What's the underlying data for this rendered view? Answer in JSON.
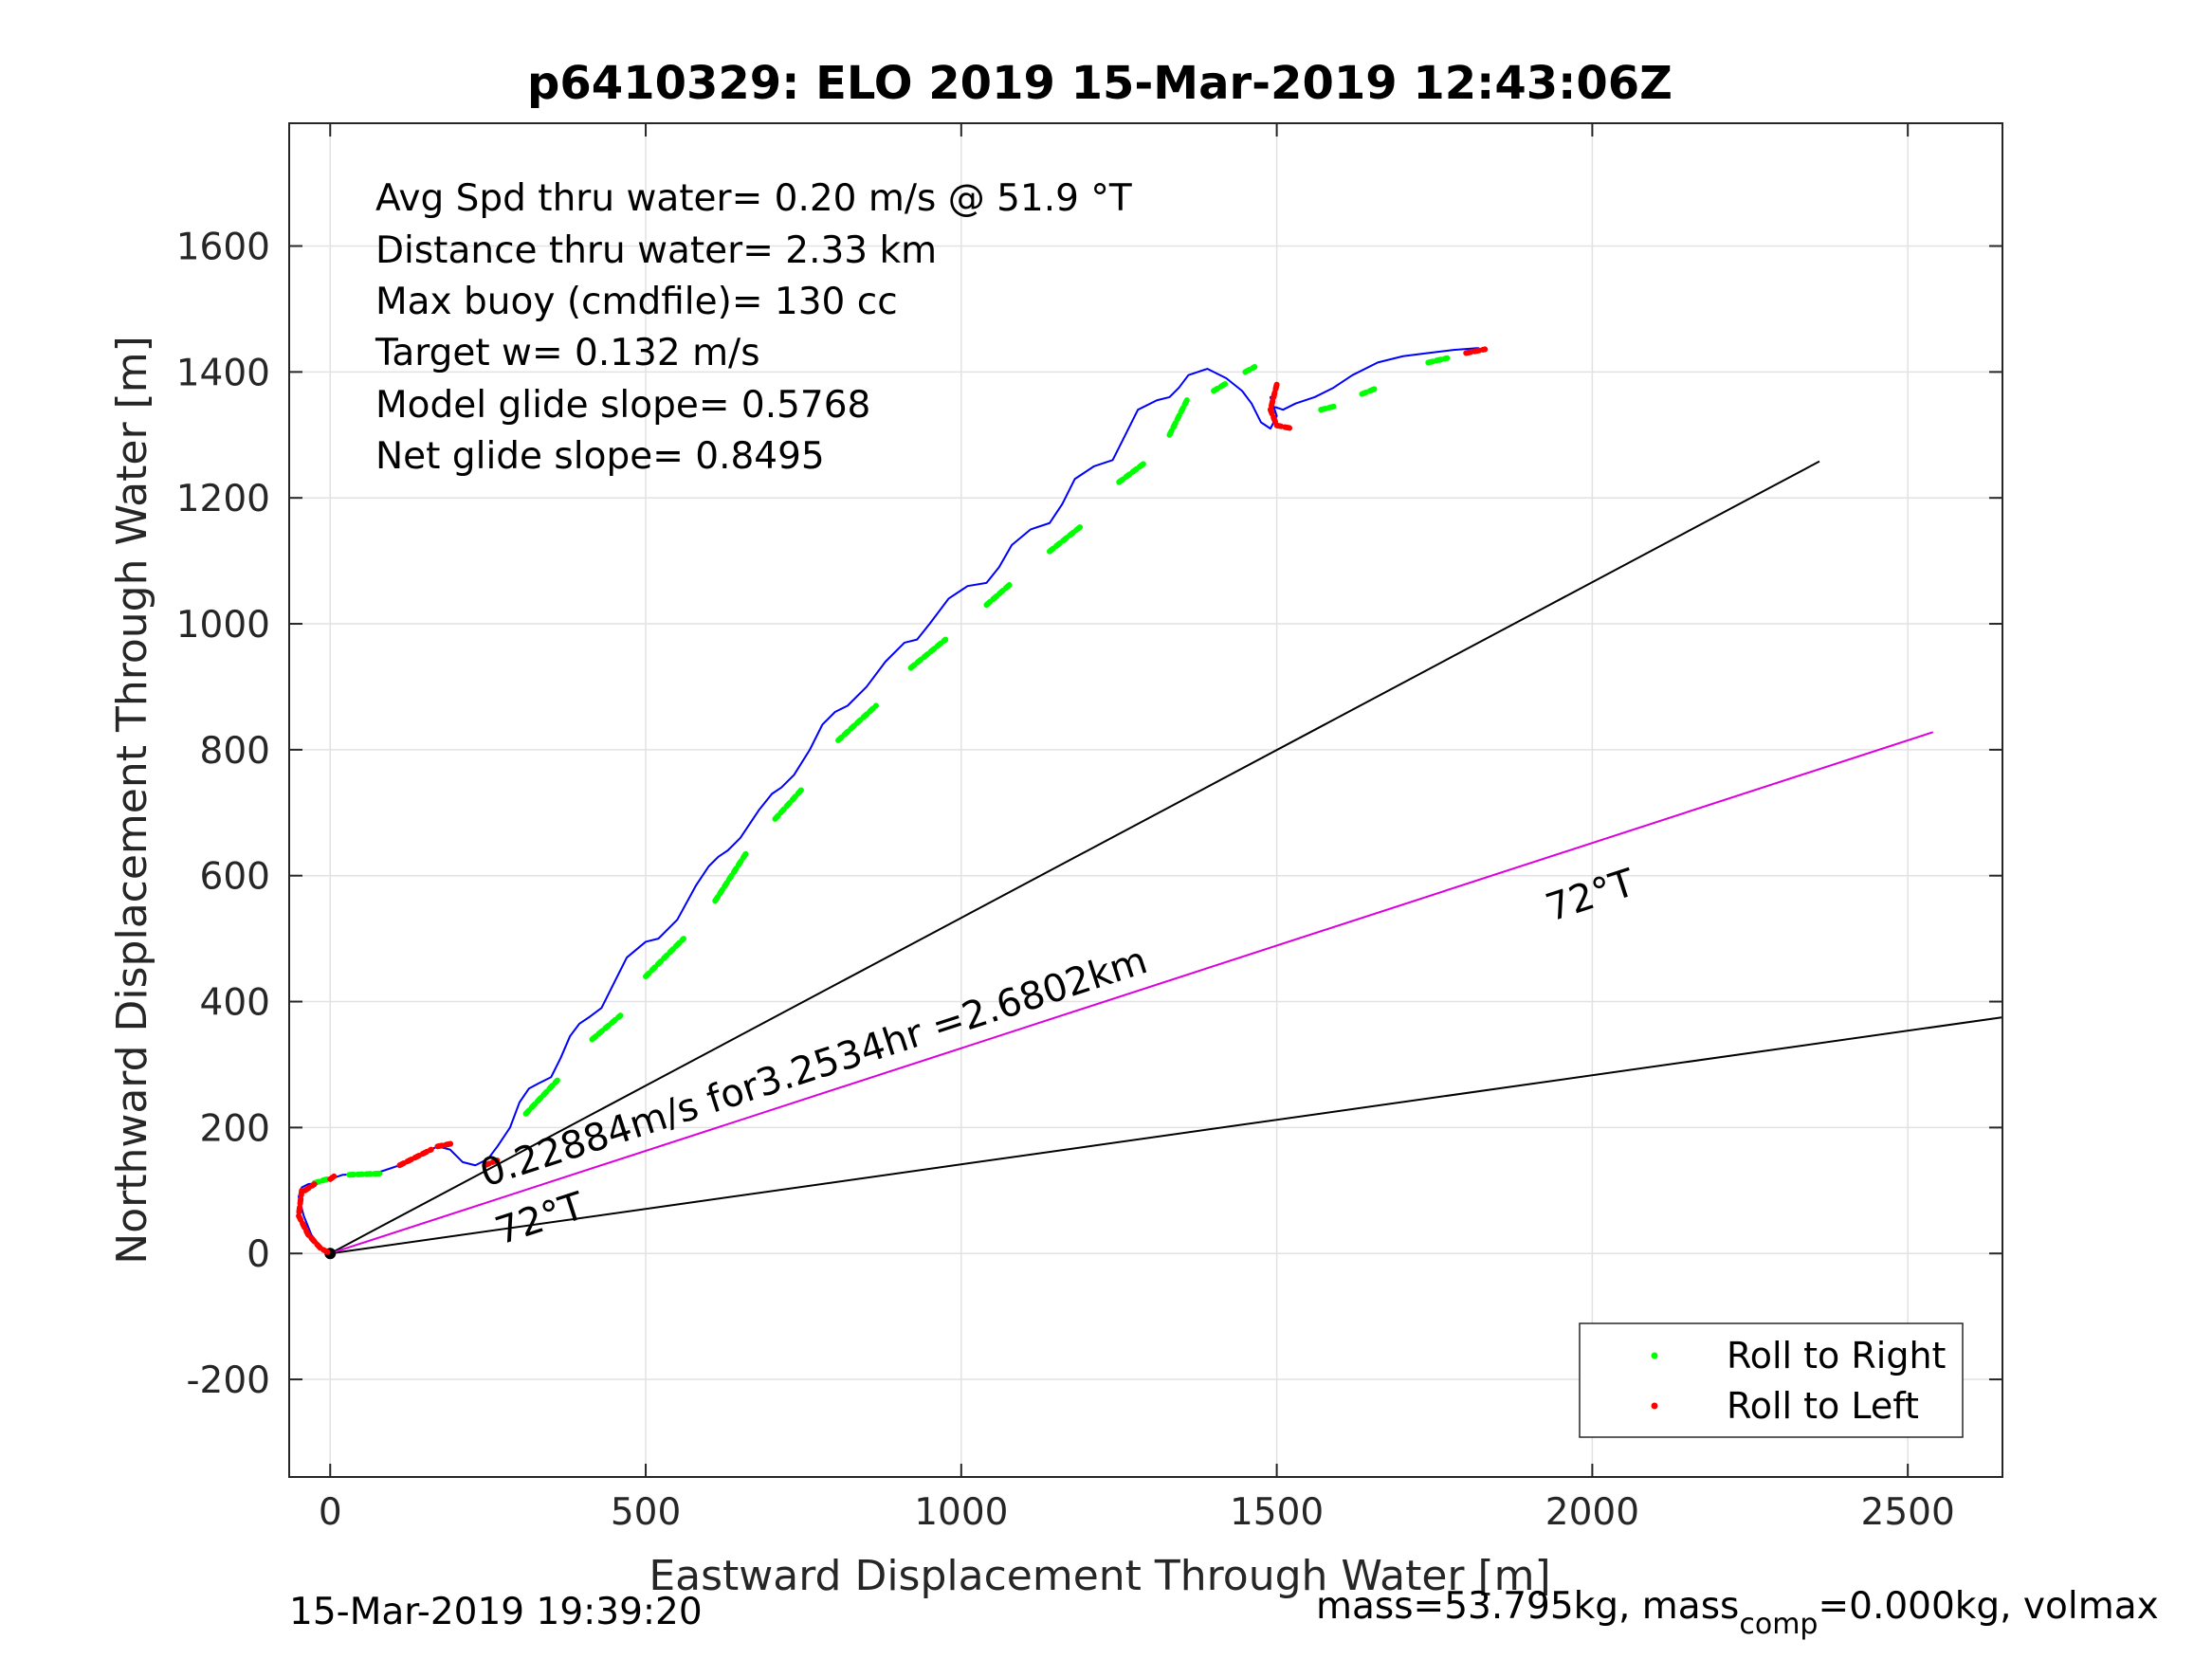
{
  "chart_data": {
    "type": "line",
    "title": "p6410329: ELO 2019 15-Mar-2019 12:43:06Z",
    "xlabel": "Eastward Displacement Through Water [m]",
    "ylabel": "Northward Displacement Through Water [m]",
    "xlim": [
      -65,
      2650
    ],
    "ylim": [
      -355,
      1795
    ],
    "xticks": [
      0,
      500,
      1000,
      1500,
      2000,
      2500
    ],
    "xtick_labels": [
      "0",
      "500",
      "1000",
      "1500",
      "2000",
      "2500"
    ],
    "yticks": [
      -200,
      0,
      200,
      400,
      600,
      800,
      1000,
      1200,
      1400,
      1600
    ],
    "ytick_labels": [
      "-200",
      "0",
      "200",
      "400",
      "600",
      "800",
      "1000",
      "1200",
      "1400",
      "1600"
    ],
    "grid": true,
    "stats": [
      "Avg Spd thru water=  0.20 m/s @  51.9 °T",
      "Distance thru water=  2.33 km",
      "Max buoy (cmdfile)= 130 cc",
      "Target w= 0.132 m/s",
      "Model glide slope= 0.5768",
      "Net glide slope= 0.8495"
    ],
    "track": {
      "name": "track",
      "color": "#0000ff",
      "x": [
        0,
        -15,
        -30,
        -42,
        -50,
        -45,
        -35,
        -20,
        0,
        20,
        50,
        80,
        110,
        140,
        170,
        190,
        210,
        230,
        250,
        265,
        285,
        300,
        315,
        330,
        350,
        365,
        380,
        395,
        410,
        430,
        450,
        470,
        500,
        520,
        550,
        580,
        600,
        615,
        630,
        650,
        680,
        700,
        715,
        735,
        760,
        780,
        800,
        820,
        850,
        880,
        910,
        930,
        950,
        980,
        1010,
        1040,
        1060,
        1080,
        1110,
        1140,
        1160,
        1180,
        1210,
        1240,
        1260,
        1280,
        1310,
        1330,
        1345,
        1360,
        1390,
        1420,
        1445,
        1460,
        1475,
        1490,
        1500,
        1490,
        1495,
        1510,
        1530,
        1560,
        1590,
        1620,
        1660,
        1700,
        1740,
        1780,
        1820
      ],
      "y": [
        0,
        10,
        30,
        60,
        90,
        105,
        110,
        112,
        118,
        125,
        126,
        130,
        140,
        155,
        170,
        165,
        145,
        140,
        150,
        170,
        200,
        240,
        262,
        270,
        280,
        310,
        345,
        365,
        375,
        390,
        430,
        470,
        495,
        500,
        530,
        585,
        615,
        630,
        640,
        660,
        705,
        730,
        740,
        760,
        800,
        840,
        860,
        870,
        900,
        940,
        970,
        975,
        1000,
        1040,
        1060,
        1065,
        1090,
        1125,
        1150,
        1160,
        1190,
        1230,
        1250,
        1260,
        1300,
        1340,
        1355,
        1360,
        1375,
        1395,
        1405,
        1390,
        1370,
        1350,
        1320,
        1310,
        1330,
        1360,
        1345,
        1340,
        1350,
        1360,
        1375,
        1395,
        1415,
        1425,
        1430,
        1435,
        1438
      ]
    },
    "heading_lines": [
      {
        "name": "heading-line-upper",
        "color": "#000000",
        "x": [
          0,
          2360
        ],
        "y": [
          0,
          1258
        ]
      },
      {
        "name": "heading-line-lower",
        "color": "#000000",
        "x": [
          0,
          2650
        ],
        "y": [
          0,
          375
        ]
      },
      {
        "name": "heading-line-magenta",
        "color": "#dd00dd",
        "x": [
          0,
          2540
        ],
        "y": [
          0,
          828
        ]
      }
    ],
    "roll_right_segments": [
      {
        "x": [
          -25,
          -5
        ],
        "y": [
          112,
          118
        ]
      },
      {
        "x": [
          30,
          80
        ],
        "y": [
          125,
          127
        ]
      },
      {
        "x": [
          310,
          360
        ],
        "y": [
          222,
          275
        ]
      },
      {
        "x": [
          415,
          460
        ],
        "y": [
          340,
          378
        ]
      },
      {
        "x": [
          500,
          560
        ],
        "y": [
          440,
          500
        ]
      },
      {
        "x": [
          610,
          660
        ],
        "y": [
          560,
          637
        ]
      },
      {
        "x": [
          705,
          750
        ],
        "y": [
          690,
          740
        ]
      },
      {
        "x": [
          805,
          865
        ],
        "y": [
          815,
          870
        ]
      },
      {
        "x": [
          920,
          975
        ],
        "y": [
          930,
          975
        ]
      },
      {
        "x": [
          1040,
          1080
        ],
        "y": [
          1030,
          1065
        ]
      },
      {
        "x": [
          1140,
          1190
        ],
        "y": [
          1115,
          1155
        ]
      },
      {
        "x": [
          1250,
          1290
        ],
        "y": [
          1225,
          1255
        ]
      },
      {
        "x": [
          1330,
          1360
        ],
        "y": [
          1300,
          1360
        ]
      },
      {
        "x": [
          1400,
          1420
        ],
        "y": [
          1370,
          1382
        ]
      },
      {
        "x": [
          1450,
          1465
        ],
        "y": [
          1400,
          1408
        ]
      },
      {
        "x": [
          1570,
          1590
        ],
        "y": [
          1340,
          1345
        ]
      },
      {
        "x": [
          1635,
          1660
        ],
        "y": [
          1365,
          1375
        ]
      },
      {
        "x": [
          1740,
          1770
        ],
        "y": [
          1415,
          1422
        ]
      }
    ],
    "roll_left_segments": [
      {
        "x": [
          -45,
          -50,
          -35,
          -15,
          0
        ],
        "y": [
          100,
          60,
          30,
          8,
          0
        ]
      },
      {
        "x": [
          -40,
          -25
        ],
        "y": [
          100,
          110
        ]
      },
      {
        "x": [
          0,
          8
        ],
        "y": [
          118,
          124
        ]
      },
      {
        "x": [
          110,
          160
        ],
        "y": [
          140,
          165
        ]
      },
      {
        "x": [
          170,
          195
        ],
        "y": [
          170,
          175
        ]
      },
      {
        "x": [
          245,
          265
        ],
        "y": [
          140,
          148
        ]
      },
      {
        "x": [
          1500,
          1490,
          1500,
          1525
        ],
        "y": [
          1380,
          1340,
          1315,
          1310
        ]
      },
      {
        "x": [
          1800,
          1830
        ],
        "y": [
          1430,
          1436
        ]
      }
    ],
    "annotations": {
      "speed": "0.22884m/s for3.2534hr =2.6802km",
      "heading_low": "72°T",
      "heading_high": "72°T"
    },
    "legend": {
      "placement": "bottom-right",
      "entries": [
        {
          "label": "Roll to Right",
          "color": "#00ff00"
        },
        {
          "label": "Roll to Left",
          "color": "#ff0000"
        }
      ]
    },
    "footer_left": "15-Mar-2019 19:39:20",
    "footer_right_a": "mass=53.795kg, mass",
    "footer_right_sub": "comp",
    "footer_right_b": "=0.000kg, volmax"
  }
}
